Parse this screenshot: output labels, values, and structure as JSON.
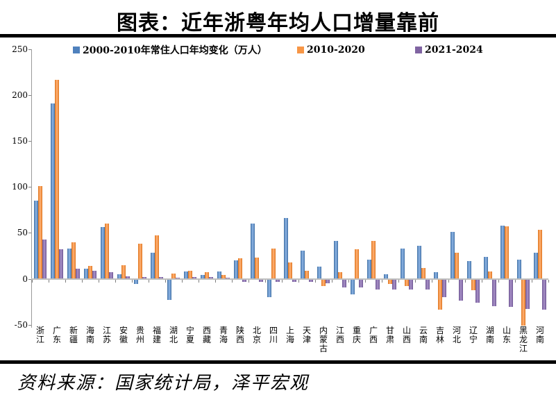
{
  "title": "图表：近年浙粤年均人口增量靠前",
  "source": "资料来源：国家统计局，泽平宏观",
  "legend": [
    {
      "label": "2000-2010年常住人口年均变化（万人）",
      "color": "#4F81BD"
    },
    {
      "label": "2010-2020",
      "color": "#F79646"
    },
    {
      "label": "2021-2024",
      "color": "#8064A2"
    }
  ],
  "chart_data": {
    "type": "bar",
    "title": "图表：近年浙粤年均人口增量靠前",
    "xlabel": "",
    "ylabel": "",
    "ylim": [
      -50,
      250
    ],
    "yticks": [
      250,
      200,
      150,
      100,
      50,
      0,
      -50
    ],
    "grid": false,
    "legend_position": "top-inside",
    "categories": [
      "浙江",
      "广东",
      "新疆",
      "海南",
      "江苏",
      "安徽",
      "贵州",
      "福建",
      "湖北",
      "宁夏",
      "西藏",
      "青海",
      "陕西",
      "北京",
      "四川",
      "上海",
      "天津",
      "内蒙古",
      "江西",
      "重庆",
      "广西",
      "甘肃",
      "山西",
      "云南",
      "吉林",
      "河北",
      "辽宁",
      "湖南",
      "山东",
      "黑龙江",
      "河南"
    ],
    "series": [
      {
        "name": "2000-2010年常住人口年均变化（万人）",
        "color": "#4F81BD",
        "values": [
          85,
          191,
          33,
          11,
          56,
          5,
          -5,
          28,
          -22,
          8,
          4,
          8,
          20,
          60,
          -19,
          66,
          31,
          13,
          41,
          -16,
          21,
          5,
          33,
          36,
          7,
          51,
          19,
          24,
          58,
          21,
          28
        ]
      },
      {
        "name": "2010-2020",
        "color": "#F79646",
        "values": [
          101,
          217,
          40,
          14,
          60,
          15,
          38,
          47,
          6,
          9,
          7,
          4,
          22,
          23,
          33,
          18,
          9,
          -7,
          7,
          32,
          41,
          -5,
          -7,
          12,
          -33,
          28,
          -12,
          8,
          57,
          -50,
          53
        ]
      },
      {
        "name": "2021-2024",
        "color": "#8064A2",
        "values": [
          43,
          32,
          11,
          9,
          7,
          3,
          2,
          2,
          1,
          2,
          2,
          1,
          -3,
          -3,
          -3,
          -3,
          -3,
          -4,
          -9,
          -9,
          -11,
          -11,
          -11,
          -11,
          -19,
          -23,
          -25,
          -29,
          -30,
          -32,
          -33
        ]
      }
    ]
  }
}
